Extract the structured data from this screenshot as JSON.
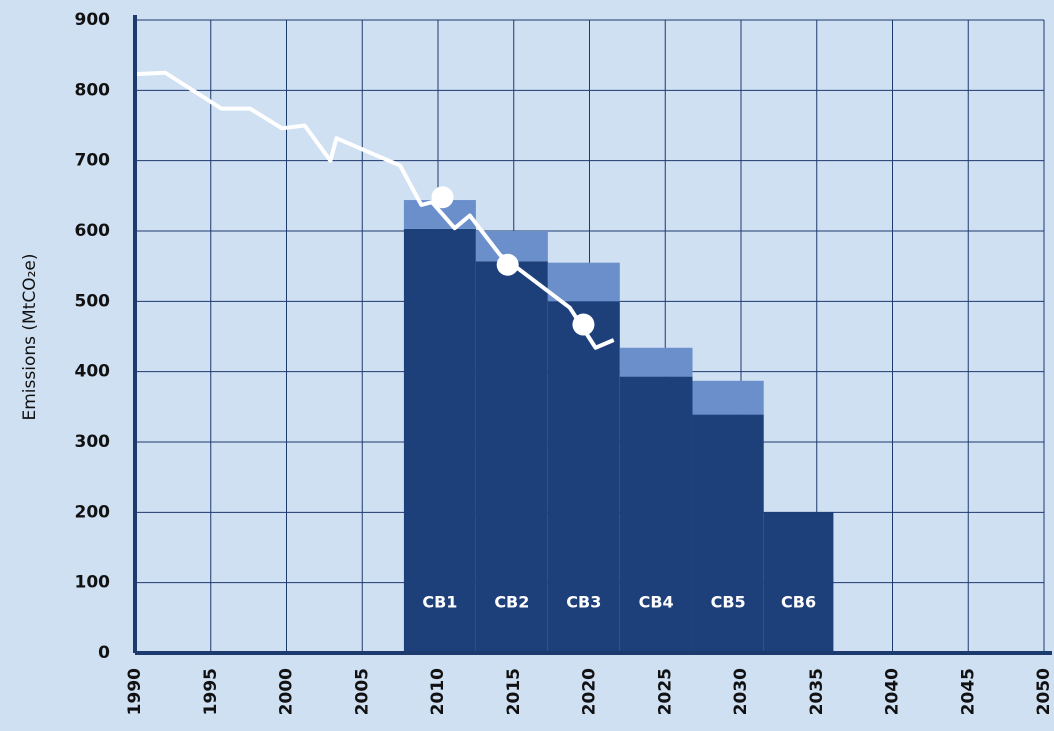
{
  "chart_data": {
    "type": "budget-steps",
    "y_label": "Emissions (MtCO₂e)",
    "xlim": [
      1990,
      2050
    ],
    "xticks": [
      1990,
      1995,
      2000,
      2005,
      2010,
      2015,
      2020,
      2025,
      2030,
      2035,
      2040,
      2045,
      2050
    ],
    "ylim": [
      0,
      900
    ],
    "yticks": [
      0,
      100,
      200,
      300,
      400,
      500,
      600,
      700,
      800,
      900
    ],
    "grid": true,
    "budgets": {
      "labels": [
        "CB1",
        "CB2",
        "CB3",
        "CB4",
        "CB5",
        "CB6"
      ],
      "x_start": [
        2007.75,
        2012.5,
        2017.25,
        2022,
        2026.8,
        2031.5
      ],
      "x_end": [
        2012.5,
        2017.25,
        2022,
        2026.8,
        2031.5,
        2036.1
      ],
      "series": [
        {
          "color": "#1d3f7a",
          "values": [
            603,
            557,
            500,
            393,
            339,
            200
          ]
        },
        {
          "color": "#6a8fcb",
          "values": [
            41,
            43,
            55,
            41,
            48,
            null
          ]
        }
      ]
    },
    "emissions": {
      "color": "#ffffff",
      "x": [
        1990,
        1992,
        1995.7,
        1997.6,
        1999.7,
        2001.2,
        2002.9,
        2003.3,
        2007.5,
        2008.9,
        2009.6,
        2011.1,
        2012.1,
        2014.1,
        2018.7,
        2020.4,
        2021.6
      ],
      "values": [
        823,
        825,
        774,
        774,
        746,
        750,
        700,
        732,
        693,
        637,
        641,
        604,
        622,
        566,
        491,
        434,
        445
      ]
    },
    "markers": {
      "color": "#ffffff",
      "x": [
        2010.3,
        2014.6,
        2019.6
      ],
      "values": [
        648,
        552,
        467
      ]
    }
  }
}
